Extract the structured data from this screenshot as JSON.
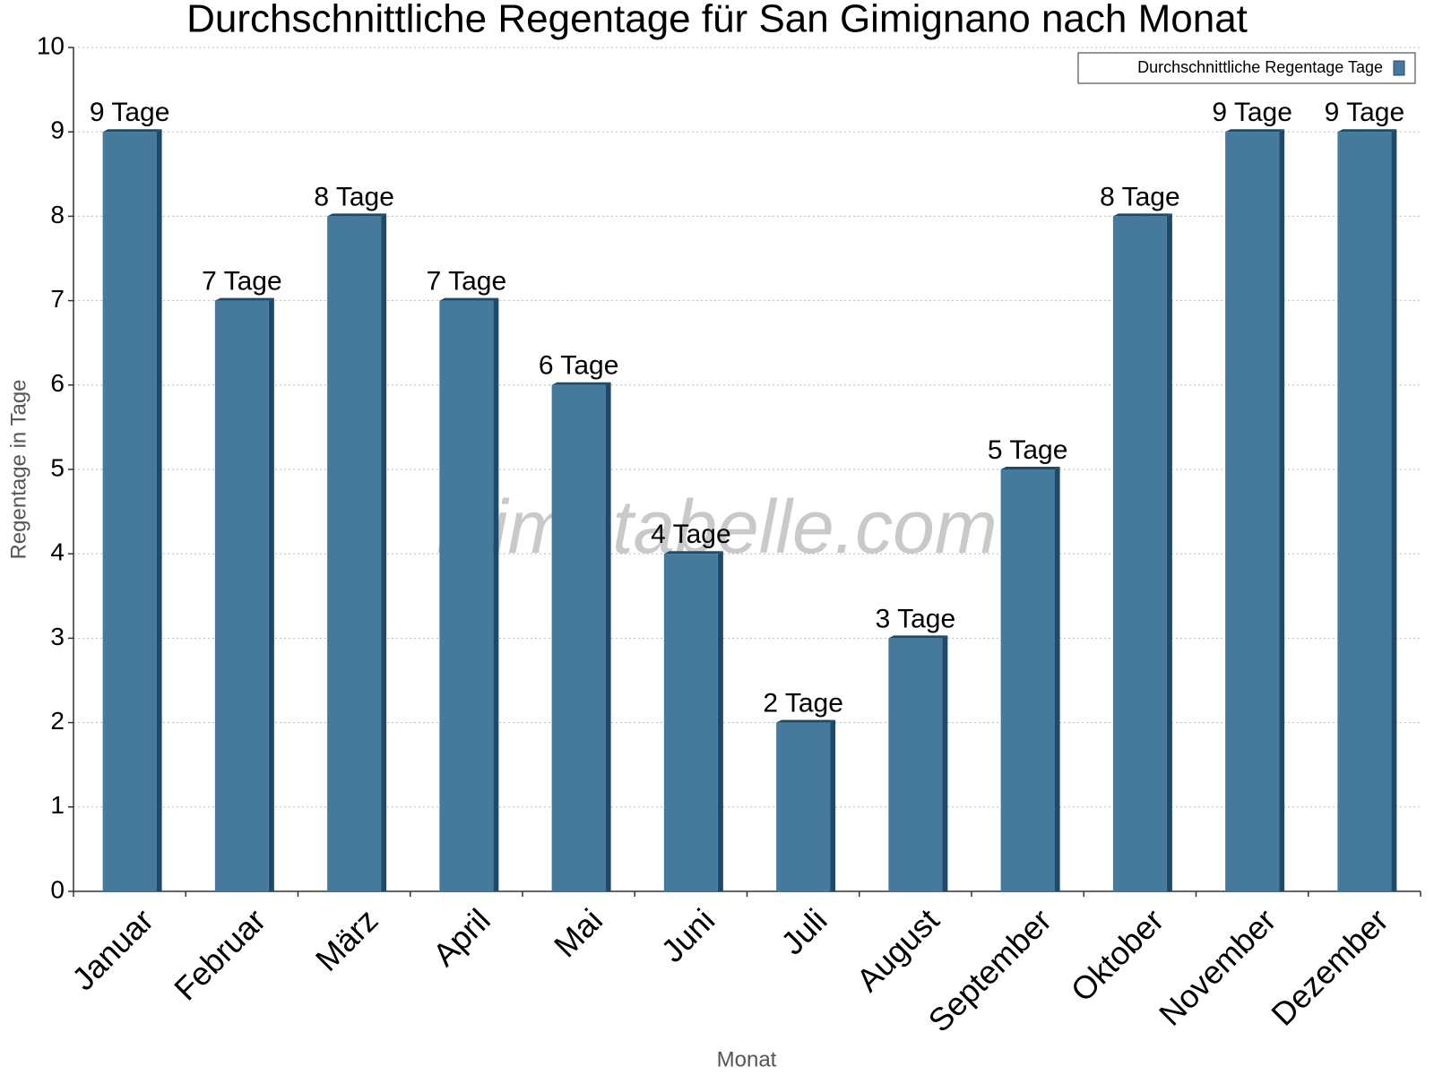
{
  "chart_data": {
    "type": "bar",
    "title": "Durchschnittliche Regentage für San Gimignano nach Monat",
    "x_label": "Monat",
    "y_label": "Regentage in Tage",
    "watermark": "klimatabelle.com",
    "categories": [
      "Januar",
      "Februar",
      "März",
      "April",
      "Mai",
      "Juni",
      "Juli",
      "August",
      "September",
      "Oktober",
      "November",
      "Dezember"
    ],
    "series": [
      {
        "name": "Durchschnittliche Regentage Tage",
        "color": "#467a9c",
        "values": [
          9,
          7,
          8,
          7,
          6,
          4,
          2,
          3,
          5,
          8,
          9,
          9
        ],
        "value_labels": [
          "9 Tage",
          "7 Tage",
          "8 Tage",
          "7 Tage",
          "6 Tage",
          "4 Tage",
          "2 Tage",
          "3 Tage",
          "5 Tage",
          "8 Tage",
          "9 Tage",
          "9 Tage"
        ]
      }
    ],
    "ylim": [
      0,
      10
    ],
    "yticks": [
      0,
      1,
      2,
      3,
      4,
      5,
      6,
      7,
      8,
      9,
      10
    ],
    "grid": true,
    "legend": "upper right"
  }
}
